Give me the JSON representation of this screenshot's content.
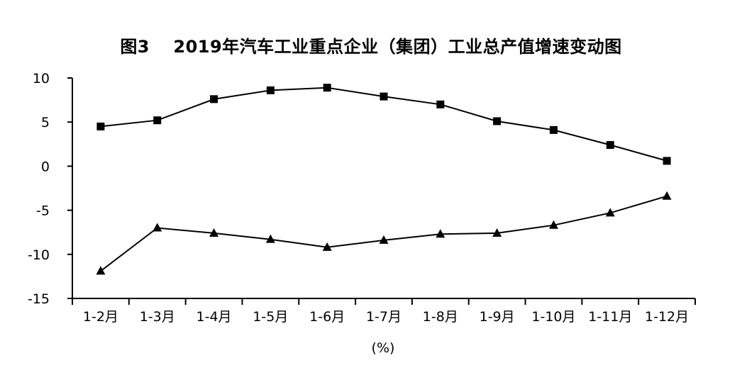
{
  "chart_data": {
    "type": "line",
    "title": "图3　 2019年汽车工业重点企业（集团）工业总产值增速变动图",
    "unit": "(%)",
    "categories": [
      "1-2月",
      "1-3月",
      "1-4月",
      "1-5月",
      "1-6月",
      "1-7月",
      "1-8月",
      "1-9月",
      "1-10月",
      "1-11月",
      "1-12月"
    ],
    "ylim": [
      -15,
      10
    ],
    "yticks": [
      10,
      5,
      0,
      -5,
      -10,
      -15
    ],
    "grid": false,
    "legend": "none",
    "series": [
      {
        "marker": "square",
        "color": "#000000",
        "values": [
          4.5,
          5.2,
          7.6,
          8.6,
          8.9,
          7.9,
          7.0,
          5.1,
          4.1,
          2.4,
          0.6
        ]
      },
      {
        "marker": "triangle",
        "color": "#000000",
        "values": [
          -11.9,
          -7.0,
          -7.6,
          -8.3,
          -9.2,
          -8.4,
          -7.7,
          -7.6,
          -6.7,
          -5.3,
          -3.4
        ]
      }
    ]
  }
}
